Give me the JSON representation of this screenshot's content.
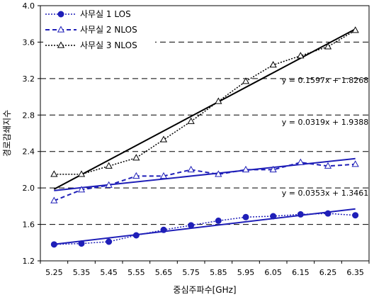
{
  "chart_data": {
    "type": "line",
    "title": "",
    "xlabel": "중심주파수[GHz]",
    "ylabel": "경로감쇄지수",
    "x": [
      5.25,
      5.35,
      5.45,
      5.55,
      5.65,
      5.75,
      5.85,
      5.95,
      6.05,
      6.15,
      6.25,
      6.35
    ],
    "xtick_labels": [
      "5.25",
      "5.35",
      "5.45",
      "5.55",
      "5.65",
      "5.75",
      "5.85",
      "5.95",
      "6.05",
      "6.15",
      "6.25",
      "6.35"
    ],
    "ylim": [
      1.2,
      4.0
    ],
    "yticks": [
      1.2,
      1.6,
      2.0,
      2.4,
      2.8,
      3.2,
      3.6,
      4.0
    ],
    "ytick_labels": [
      "1.2",
      "1.6",
      "2.0",
      "2.4",
      "2.8",
      "3.2",
      "3.6",
      "4.0"
    ],
    "grid": "horizontal dashed",
    "legend_position": "top-left",
    "series": [
      {
        "name": "사무실 1 LOS",
        "color": "#1f1fb8",
        "marker": "filled-circle",
        "line": "dotted",
        "values": [
          1.38,
          1.39,
          1.41,
          1.48,
          1.54,
          1.59,
          1.64,
          1.68,
          1.69,
          1.71,
          1.72,
          1.7
        ],
        "trendline": {
          "slope": 0.0353,
          "intercept": 1.3461,
          "color": "#1f1fb8",
          "equation": "y = 0.0353x + 1.3461"
        }
      },
      {
        "name": "사무실 2 NLOS",
        "color": "#1f1fb8",
        "marker": "open-triangle",
        "line": "dashed",
        "values": [
          1.86,
          1.98,
          2.03,
          2.13,
          2.13,
          2.2,
          2.15,
          2.2,
          2.2,
          2.28,
          2.24,
          2.26
        ],
        "trendline": {
          "slope": 0.0319,
          "intercept": 1.9388,
          "color": "#1f1fb8",
          "equation": "y = 0.0319x + 1.9388"
        }
      },
      {
        "name": "사무실 3 NLOS",
        "color": "#000000",
        "marker": "open-triangle",
        "line": "dotted",
        "values": [
          2.15,
          2.15,
          2.24,
          2.33,
          2.53,
          2.73,
          2.95,
          3.17,
          3.35,
          3.45,
          3.55,
          3.73
        ],
        "trendline": {
          "slope": 0.1597,
          "intercept": 1.8268,
          "color": "#000000",
          "equation": "y = 0.1597x + 1.8268"
        }
      }
    ]
  }
}
